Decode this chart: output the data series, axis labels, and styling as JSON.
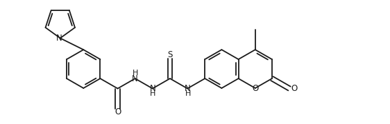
{
  "figsize": [
    5.62,
    1.8
  ],
  "dpi": 100,
  "bg_color": "#ffffff",
  "line_color": "#1a1a1a",
  "lw": 1.3,
  "font_size": 8.5,
  "xlim": [
    0,
    10
  ],
  "ylim": [
    0,
    3.2
  ]
}
